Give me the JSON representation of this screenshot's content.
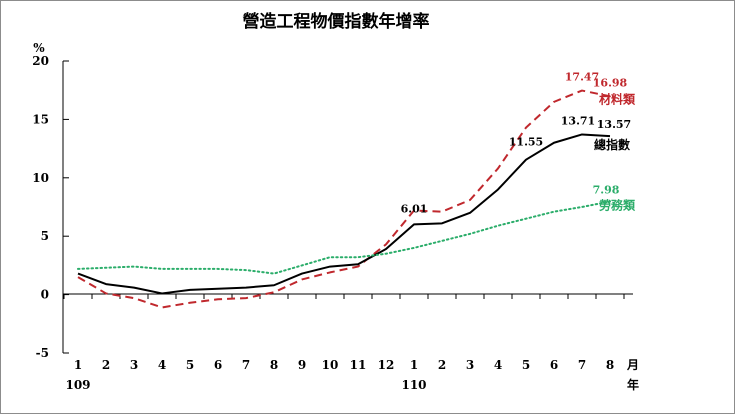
{
  "chart_data": {
    "type": "line",
    "title": "營造工程物價指數年增率",
    "ylabel": "%",
    "ylim": [
      -5,
      20
    ],
    "yticks": [
      -5,
      0,
      5,
      10,
      15,
      20
    ],
    "x_unit_label": "月",
    "year_unit_label": "年",
    "categories": [
      "1",
      "2",
      "3",
      "4",
      "5",
      "6",
      "7",
      "8",
      "9",
      "10",
      "11",
      "12",
      "1",
      "2",
      "3",
      "4",
      "5",
      "6",
      "7",
      "8"
    ],
    "year_labels": [
      {
        "index": 0,
        "label": "109"
      },
      {
        "index": 12,
        "label": "110"
      }
    ],
    "grid": false,
    "series": [
      {
        "name": "材料類",
        "color": "#c0282d",
        "style": "dashed",
        "values": [
          1.5,
          0.1,
          -0.3,
          -1.1,
          -0.7,
          -0.4,
          -0.3,
          0.2,
          1.3,
          1.9,
          2.4,
          4.3,
          7.2,
          7.1,
          8.1,
          10.8,
          14.3,
          16.5,
          17.47,
          16.98
        ],
        "labeled_points": [
          {
            "index": 18,
            "text": "17.47"
          },
          {
            "index": 19,
            "text": "16.98"
          }
        ]
      },
      {
        "name": "總指數",
        "color": "#000000",
        "style": "solid",
        "values": [
          1.8,
          0.9,
          0.6,
          0.1,
          0.4,
          0.5,
          0.6,
          0.8,
          1.8,
          2.4,
          2.6,
          3.9,
          6.01,
          6.1,
          7.0,
          9.0,
          11.55,
          13.0,
          13.71,
          13.57
        ],
        "labeled_points": [
          {
            "index": 12,
            "text": "6.01"
          },
          {
            "index": 16,
            "text": "11.55"
          },
          {
            "index": 18,
            "text": "13.71"
          },
          {
            "index": 19,
            "text": "13.57"
          }
        ]
      },
      {
        "name": "勞務類",
        "color": "#2bad6a",
        "style": "dotted",
        "values": [
          2.2,
          2.3,
          2.4,
          2.2,
          2.2,
          2.2,
          2.1,
          1.8,
          2.5,
          3.2,
          3.2,
          3.5,
          4.0,
          4.6,
          5.2,
          5.9,
          6.5,
          7.1,
          7.5,
          7.98
        ],
        "labeled_points": [
          {
            "index": 19,
            "text": "7.98"
          }
        ]
      }
    ]
  }
}
